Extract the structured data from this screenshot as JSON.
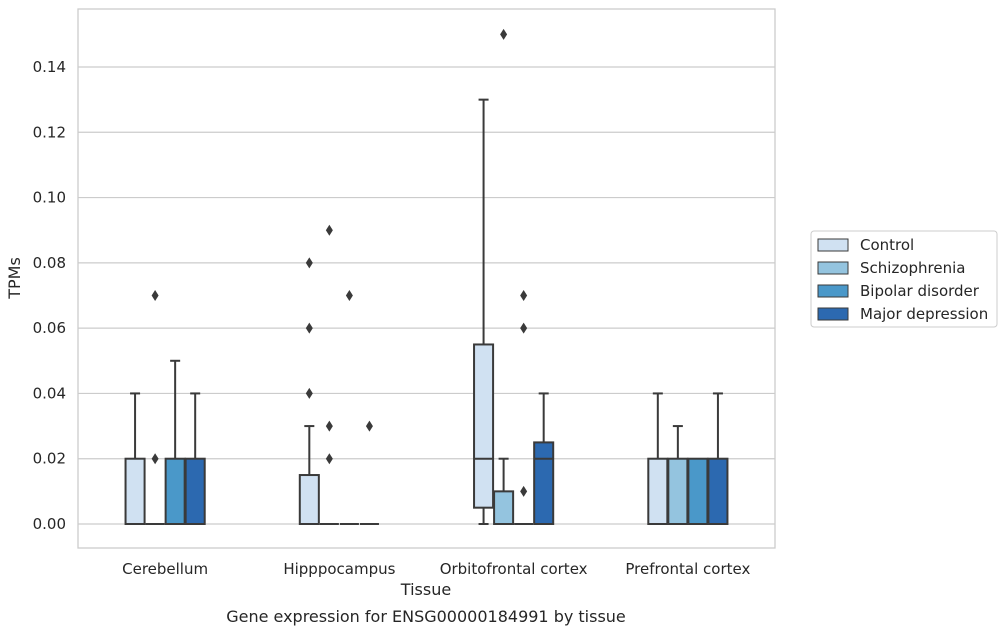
{
  "caption": "Gene expression for ENSG00000184991 by tissue",
  "colors": {
    "control": "#d0e1f2",
    "schizophrenia": "#94c4df",
    "bipolar": "#4a98c9",
    "depression": "#2c69b0",
    "line": "#3a3a3a",
    "grid": "#cccccc",
    "frame": "#cccccc"
  },
  "chart_data": {
    "type": "box",
    "title": "",
    "xlabel": "Tissue",
    "ylabel": "TPMs",
    "ylim": [
      -0.007,
      0.158
    ],
    "yticks": [
      0.0,
      0.02,
      0.04,
      0.06,
      0.08,
      0.1,
      0.12,
      0.14
    ],
    "ytick_labels": [
      "0.00",
      "0.02",
      "0.04",
      "0.06",
      "0.08",
      "0.10",
      "0.12",
      "0.14"
    ],
    "grid": "horizontal",
    "legend_position": "right",
    "categories": [
      "Cerebellum",
      "Hipppocampus",
      "Orbitofrontal cortex",
      "Prefrontal cortex"
    ],
    "series": [
      {
        "name": "Control",
        "boxes": [
          {
            "q1": 0.0,
            "median": 0.0,
            "q3": 0.02,
            "whislo": 0.0,
            "whishi": 0.04,
            "fliers": []
          },
          {
            "q1": 0.0,
            "median": 0.0,
            "q3": 0.015,
            "whislo": 0.0,
            "whishi": 0.03,
            "fliers": [
              0.04,
              0.06,
              0.08
            ]
          },
          {
            "q1": 0.005,
            "median": 0.02,
            "q3": 0.055,
            "whislo": 0.0,
            "whishi": 0.13,
            "fliers": []
          },
          {
            "q1": 0.0,
            "median": 0.0,
            "q3": 0.02,
            "whislo": 0.0,
            "whishi": 0.04,
            "fliers": []
          }
        ]
      },
      {
        "name": "Schizophrenia",
        "boxes": [
          {
            "q1": 0.0,
            "median": 0.0,
            "q3": 0.0,
            "whislo": 0.0,
            "whishi": 0.0,
            "fliers": [
              0.02,
              0.07
            ]
          },
          {
            "q1": 0.0,
            "median": 0.0,
            "q3": 0.0,
            "whislo": 0.0,
            "whishi": 0.0,
            "fliers": [
              0.02,
              0.03,
              0.09
            ]
          },
          {
            "q1": 0.0,
            "median": 0.0,
            "q3": 0.01,
            "whislo": 0.0,
            "whishi": 0.02,
            "fliers": [
              0.15
            ]
          },
          {
            "q1": 0.0,
            "median": 0.0,
            "q3": 0.02,
            "whislo": 0.0,
            "whishi": 0.03,
            "fliers": []
          }
        ]
      },
      {
        "name": "Bipolar disorder",
        "boxes": [
          {
            "q1": 0.0,
            "median": 0.0,
            "q3": 0.02,
            "whislo": 0.0,
            "whishi": 0.05,
            "fliers": []
          },
          {
            "q1": 0.0,
            "median": 0.0,
            "q3": 0.0,
            "whislo": 0.0,
            "whishi": 0.0,
            "fliers": [
              0.07
            ]
          },
          {
            "q1": 0.0,
            "median": 0.0,
            "q3": 0.0,
            "whislo": 0.0,
            "whishi": 0.0,
            "fliers": [
              0.01,
              0.06,
              0.07
            ]
          },
          {
            "q1": 0.0,
            "median": 0.0,
            "q3": 0.02,
            "whislo": 0.0,
            "whishi": 0.02,
            "fliers": []
          }
        ]
      },
      {
        "name": "Major depression",
        "boxes": [
          {
            "q1": 0.0,
            "median": 0.0,
            "q3": 0.02,
            "whislo": 0.0,
            "whishi": 0.04,
            "fliers": []
          },
          {
            "q1": 0.0,
            "median": 0.0,
            "q3": 0.0,
            "whislo": 0.0,
            "whishi": 0.0,
            "fliers": [
              0.03
            ]
          },
          {
            "q1": 0.0,
            "median": 0.02,
            "q3": 0.025,
            "whislo": 0.0,
            "whishi": 0.04,
            "fliers": []
          },
          {
            "q1": 0.0,
            "median": 0.0,
            "q3": 0.02,
            "whislo": 0.0,
            "whishi": 0.04,
            "fliers": []
          }
        ]
      }
    ]
  }
}
